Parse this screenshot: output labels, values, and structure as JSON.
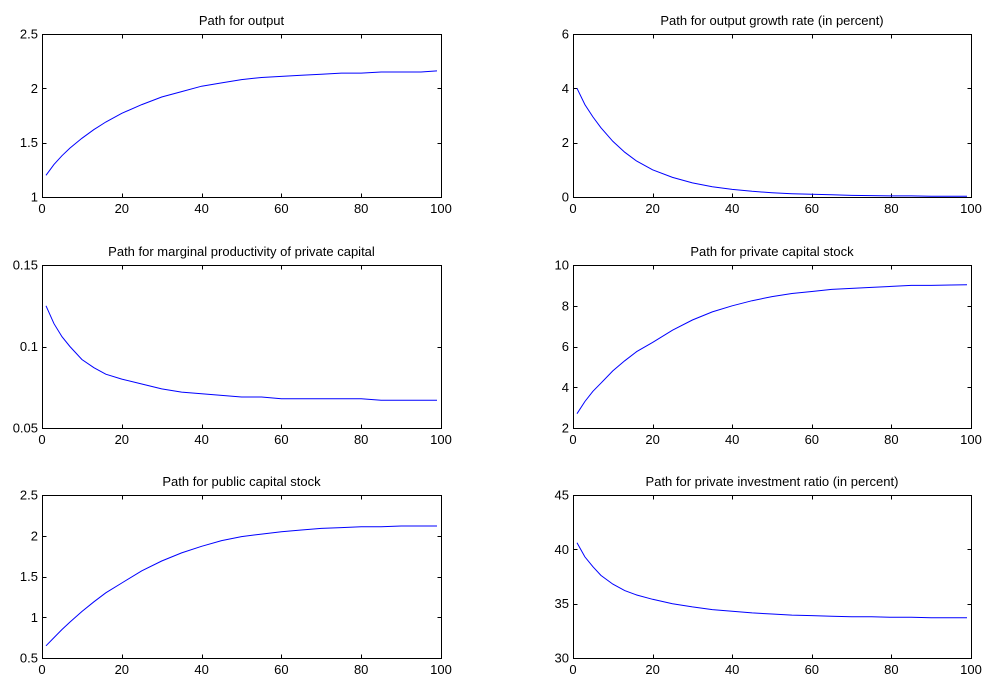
{
  "chart_data": [
    {
      "type": "line",
      "title": "Path for output",
      "xlim": [
        0,
        100
      ],
      "ylim": [
        1,
        2.5
      ],
      "xticks": [
        0,
        20,
        40,
        60,
        80,
        100
      ],
      "yticks": [
        1,
        1.5,
        2,
        2.5
      ],
      "xlabel": "",
      "ylabel": "",
      "grid": false,
      "series": [
        {
          "color": "#0000ff",
          "x": [
            1,
            3,
            5,
            7,
            10,
            13,
            16,
            20,
            25,
            30,
            35,
            40,
            45,
            50,
            55,
            60,
            65,
            70,
            75,
            80,
            85,
            90,
            95,
            99
          ],
          "y": [
            1.2,
            1.3,
            1.38,
            1.45,
            1.54,
            1.62,
            1.69,
            1.77,
            1.85,
            1.92,
            1.97,
            2.02,
            2.05,
            2.08,
            2.1,
            2.11,
            2.12,
            2.13,
            2.14,
            2.14,
            2.15,
            2.15,
            2.15,
            2.16
          ]
        }
      ]
    },
    {
      "type": "line",
      "title": "Path for output growth rate (in percent)",
      "xlim": [
        0,
        100
      ],
      "ylim": [
        0,
        6
      ],
      "xticks": [
        0,
        20,
        40,
        60,
        80,
        100
      ],
      "yticks": [
        0,
        2,
        4,
        6
      ],
      "xlabel": "",
      "ylabel": "",
      "grid": false,
      "series": [
        {
          "color": "#0000ff",
          "x": [
            1,
            3,
            5,
            7,
            10,
            13,
            16,
            20,
            25,
            30,
            35,
            40,
            45,
            50,
            55,
            60,
            65,
            70,
            75,
            80,
            85,
            90,
            95,
            99
          ],
          "y": [
            4.0,
            3.4,
            2.95,
            2.55,
            2.05,
            1.65,
            1.32,
            1.0,
            0.72,
            0.52,
            0.38,
            0.28,
            0.21,
            0.16,
            0.12,
            0.1,
            0.08,
            0.06,
            0.05,
            0.04,
            0.04,
            0.03,
            0.03,
            0.03
          ]
        }
      ]
    },
    {
      "type": "line",
      "title": "Path for marginal productivity of private capital",
      "xlim": [
        0,
        100
      ],
      "ylim": [
        0.05,
        0.15
      ],
      "xticks": [
        0,
        20,
        40,
        60,
        80,
        100
      ],
      "yticks": [
        0.05,
        0.1,
        0.15
      ],
      "xlabel": "",
      "ylabel": "",
      "grid": false,
      "series": [
        {
          "color": "#0000ff",
          "x": [
            1,
            3,
            5,
            7,
            10,
            13,
            16,
            20,
            25,
            30,
            35,
            40,
            45,
            50,
            55,
            60,
            65,
            70,
            75,
            80,
            85,
            90,
            95,
            99
          ],
          "y": [
            0.125,
            0.114,
            0.106,
            0.1,
            0.092,
            0.087,
            0.083,
            0.08,
            0.077,
            0.074,
            0.072,
            0.071,
            0.07,
            0.069,
            0.069,
            0.068,
            0.068,
            0.068,
            0.068,
            0.068,
            0.067,
            0.067,
            0.067,
            0.067
          ]
        }
      ]
    },
    {
      "type": "line",
      "title": "Path for private capital stock",
      "xlim": [
        0,
        100
      ],
      "ylim": [
        2,
        10
      ],
      "xticks": [
        0,
        20,
        40,
        60,
        80,
        100
      ],
      "yticks": [
        2,
        4,
        6,
        8,
        10
      ],
      "xlabel": "",
      "ylabel": "",
      "grid": false,
      "series": [
        {
          "color": "#0000ff",
          "x": [
            1,
            3,
            5,
            7,
            10,
            13,
            16,
            20,
            25,
            30,
            35,
            40,
            45,
            50,
            55,
            60,
            65,
            70,
            75,
            80,
            85,
            90,
            95,
            99
          ],
          "y": [
            2.7,
            3.3,
            3.8,
            4.2,
            4.8,
            5.3,
            5.75,
            6.2,
            6.8,
            7.3,
            7.7,
            8.0,
            8.25,
            8.45,
            8.6,
            8.7,
            8.8,
            8.85,
            8.9,
            8.95,
            9.0,
            9.0,
            9.02,
            9.03
          ]
        }
      ]
    },
    {
      "type": "line",
      "title": "Path for public capital stock",
      "xlim": [
        0,
        100
      ],
      "ylim": [
        0.5,
        2.5
      ],
      "xticks": [
        0,
        20,
        40,
        60,
        80,
        100
      ],
      "yticks": [
        0.5,
        1,
        1.5,
        2,
        2.5
      ],
      "xlabel": "",
      "ylabel": "",
      "grid": false,
      "series": [
        {
          "color": "#0000ff",
          "x": [
            1,
            3,
            5,
            7,
            10,
            13,
            16,
            20,
            25,
            30,
            35,
            40,
            45,
            50,
            55,
            60,
            65,
            70,
            75,
            80,
            85,
            90,
            95,
            99
          ],
          "y": [
            0.65,
            0.75,
            0.85,
            0.94,
            1.07,
            1.19,
            1.3,
            1.42,
            1.57,
            1.69,
            1.79,
            1.87,
            1.94,
            1.99,
            2.02,
            2.05,
            2.07,
            2.09,
            2.1,
            2.11,
            2.11,
            2.12,
            2.12,
            2.12
          ]
        }
      ]
    },
    {
      "type": "line",
      "title": "Path for private investment ratio (in percent)",
      "xlim": [
        0,
        100
      ],
      "ylim": [
        30,
        45
      ],
      "xticks": [
        0,
        20,
        40,
        60,
        80,
        100
      ],
      "yticks": [
        30,
        35,
        40,
        45
      ],
      "xlabel": "",
      "ylabel": "",
      "grid": false,
      "series": [
        {
          "color": "#0000ff",
          "x": [
            1,
            3,
            5,
            7,
            10,
            13,
            16,
            20,
            25,
            30,
            35,
            40,
            45,
            50,
            55,
            60,
            65,
            70,
            75,
            80,
            85,
            90,
            95,
            99
          ],
          "y": [
            40.6,
            39.3,
            38.4,
            37.6,
            36.8,
            36.2,
            35.8,
            35.4,
            35.0,
            34.7,
            34.45,
            34.3,
            34.15,
            34.05,
            33.95,
            33.9,
            33.85,
            33.8,
            33.8,
            33.75,
            33.75,
            33.7,
            33.7,
            33.7
          ]
        }
      ]
    }
  ]
}
